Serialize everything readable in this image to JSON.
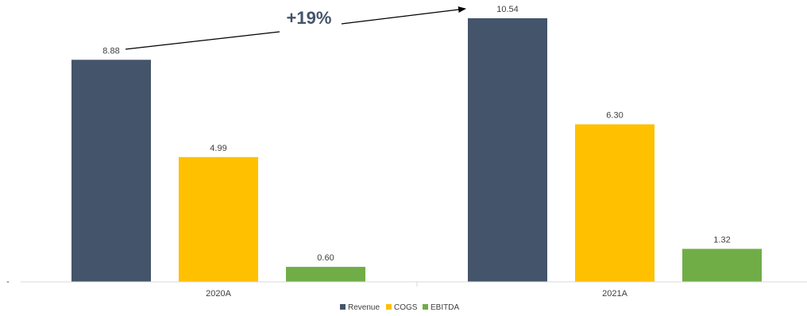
{
  "chart_data": {
    "type": "bar",
    "categories": [
      "2020A",
      "2021A"
    ],
    "series": [
      {
        "name": "Revenue",
        "values": [
          8.88,
          10.54
        ],
        "labels": [
          "8.88",
          "10.54"
        ],
        "color": "#44546a"
      },
      {
        "name": "COGS",
        "values": [
          4.99,
          6.3
        ],
        "labels": [
          "4.99",
          "6.30"
        ],
        "color": "#ffc000"
      },
      {
        "name": "EBITDA",
        "values": [
          0.6,
          1.32
        ],
        "labels": [
          "0.60",
          "1.32"
        ],
        "color": "#70ad47"
      }
    ],
    "ylim": [
      0,
      10.54
    ],
    "axis_zero_label": "-",
    "annotation": {
      "text": "+19%",
      "from_series": "Revenue",
      "from_category": "2020A",
      "to_category": "2021A",
      "color": "#44546a"
    },
    "legend_position": "bottom",
    "grid": false
  }
}
